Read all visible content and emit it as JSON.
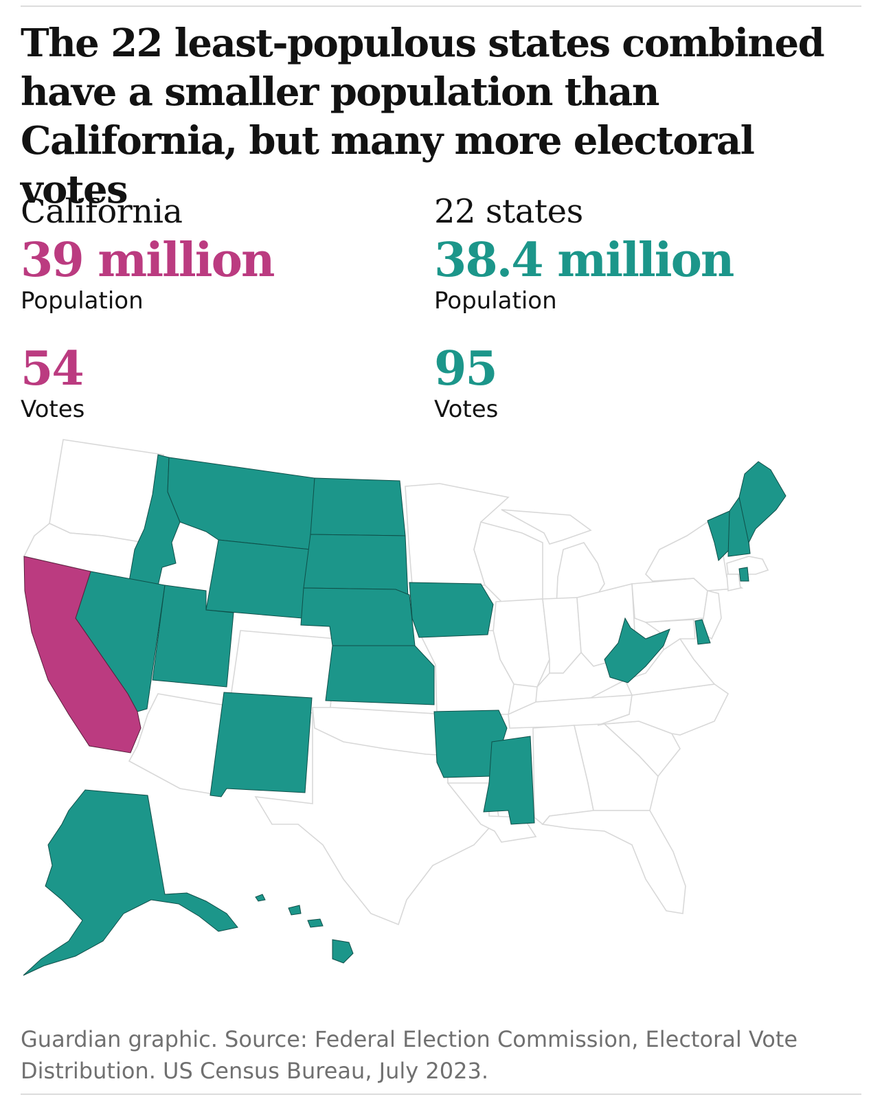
{
  "title": "The 22 least-populous states combined have a smaller population than California, but many more electoral votes",
  "california": {
    "label": "California",
    "population": "39 million",
    "population_label": "Population",
    "votes": "54",
    "votes_label": "Votes"
  },
  "small_states": {
    "label": "22 states",
    "population": "38.4 million",
    "population_label": "Population",
    "votes": "95",
    "votes_label": "Votes"
  },
  "source": "Guardian graphic. Source: Federal Election Commission, Electoral Vote Distribution. US Census Bureau, July 2023.",
  "colors": {
    "california": "#bb3b80",
    "small_states": "#1c968a",
    "other_states": "#ffffff",
    "border": "#d8d8d8"
  }
}
